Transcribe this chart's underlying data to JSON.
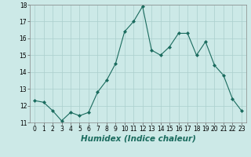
{
  "xlabel": "Humidex (Indice chaleur)",
  "x": [
    0,
    1,
    2,
    3,
    4,
    5,
    6,
    7,
    8,
    9,
    10,
    11,
    12,
    13,
    14,
    15,
    16,
    17,
    18,
    19,
    20,
    21,
    22,
    23
  ],
  "y": [
    12.3,
    12.2,
    11.7,
    11.1,
    11.6,
    11.4,
    11.6,
    12.8,
    13.5,
    14.5,
    16.4,
    17.0,
    17.9,
    15.3,
    15.0,
    15.5,
    16.3,
    16.3,
    15.0,
    15.8,
    14.4,
    13.8,
    12.4,
    11.7
  ],
  "ylim": [
    11,
    18
  ],
  "xlim": [
    -0.5,
    23.5
  ],
  "yticks": [
    11,
    12,
    13,
    14,
    15,
    16,
    17,
    18
  ],
  "xticks": [
    0,
    1,
    2,
    3,
    4,
    5,
    6,
    7,
    8,
    9,
    10,
    11,
    12,
    13,
    14,
    15,
    16,
    17,
    18,
    19,
    20,
    21,
    22,
    23
  ],
  "line_color": "#1a6b5e",
  "marker": "D",
  "marker_size": 2.0,
  "bg_color": "#cce9e7",
  "grid_color": "#aacfcd",
  "tick_fontsize": 5.5,
  "xlabel_fontsize": 7.5,
  "linewidth": 0.8
}
